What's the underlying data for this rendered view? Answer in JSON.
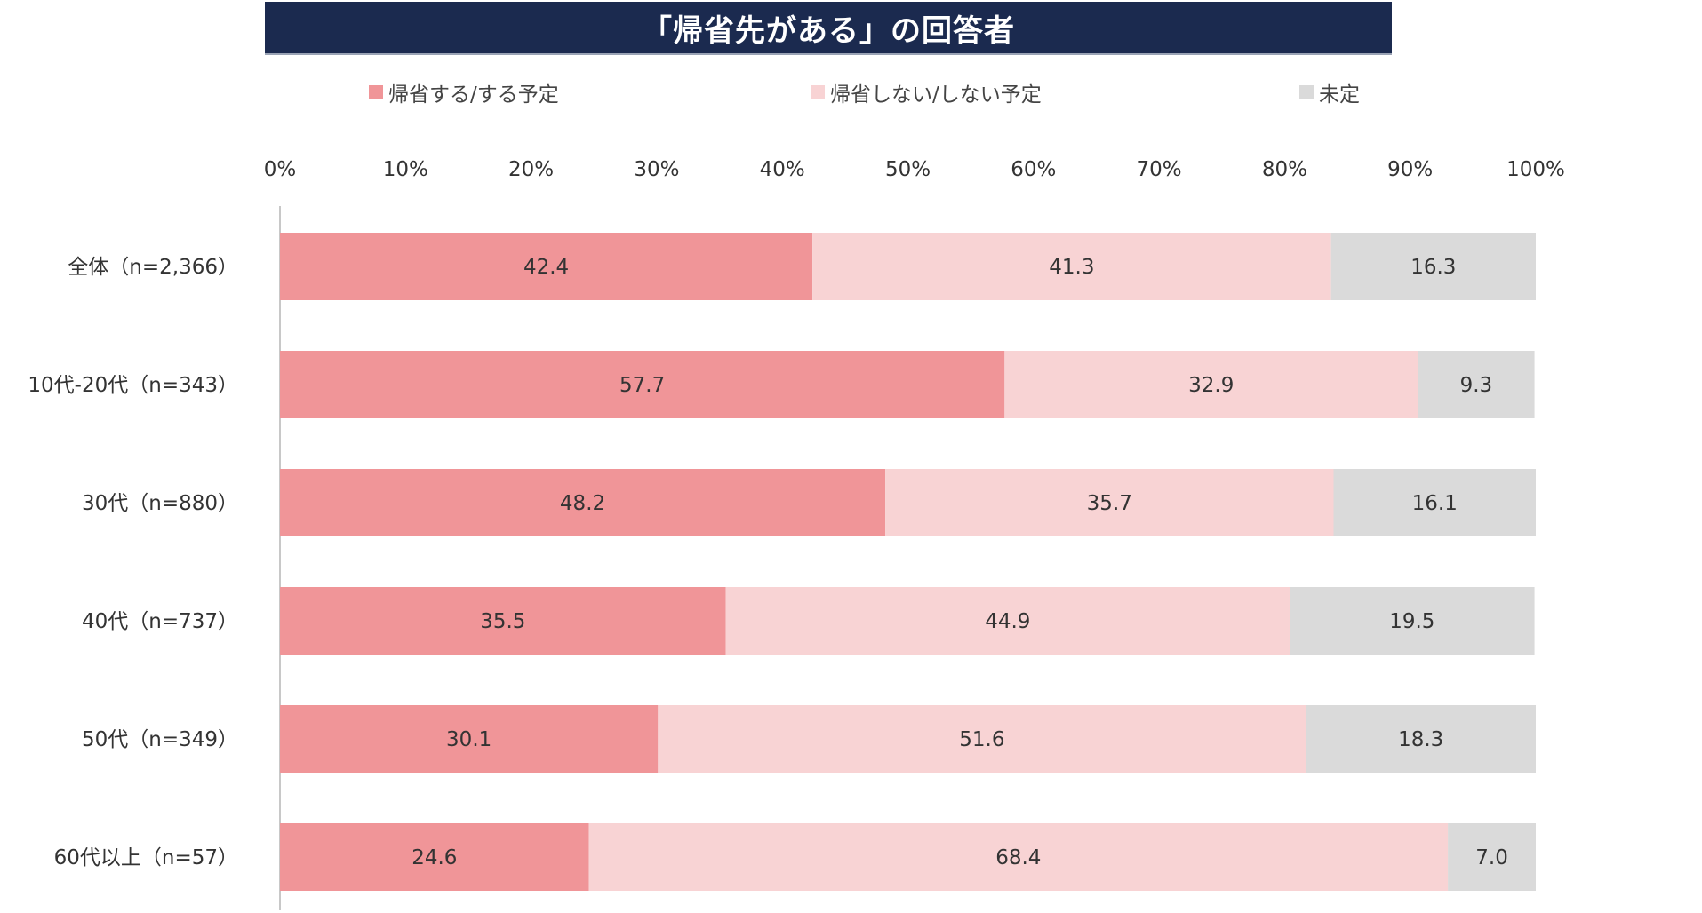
{
  "chart_data": {
    "type": "bar",
    "orientation": "horizontal",
    "stacked": true,
    "title": "「帰省先がある」の回答者",
    "categories": [
      "全体（n=2,366）",
      "10代-20代（n=343）",
      "30代（n=880）",
      "40代（n=737）",
      "50代（n=349）",
      "60代以上（n=57）"
    ],
    "series": [
      {
        "name": "帰省する/する予定",
        "color": "#f09598",
        "values": [
          42.4,
          57.7,
          48.2,
          35.5,
          30.1,
          24.6
        ]
      },
      {
        "name": "帰省しない/しない予定",
        "color": "#f8d3d4",
        "values": [
          41.3,
          32.9,
          35.7,
          44.9,
          51.6,
          68.4
        ]
      },
      {
        "name": "未定",
        "color": "#dadada",
        "values": [
          16.3,
          9.3,
          16.1,
          19.5,
          18.3,
          7.0
        ]
      }
    ],
    "x_ticks": [
      "0%",
      "10%",
      "20%",
      "30%",
      "40%",
      "50%",
      "60%",
      "70%",
      "80%",
      "90%",
      "100%"
    ],
    "xlim": [
      0,
      100
    ],
    "legend_position": "top",
    "grid": false
  }
}
